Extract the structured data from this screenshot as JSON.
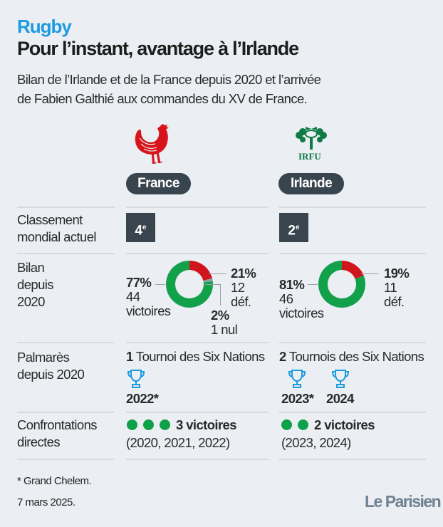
{
  "header": {
    "kicker": "Rugby",
    "title": "Pour l’instant, avantage à l’Irlande",
    "subtitle_line1": "Bilan de l’Irlande et de la France depuis 2020 et l’arrivée",
    "subtitle_line2": "de Fabien Galthié aux commandes du XV de France."
  },
  "teams": {
    "france": {
      "name": "France",
      "logo": "rooster-icon",
      "rank": "4",
      "rank_suffix": "e",
      "record": {
        "wins_pct": "77%",
        "wins_count": "44",
        "wins_label": "victoires",
        "losses_pct": "21%",
        "losses_count": "12",
        "losses_label": "déf.",
        "draws_pct": "2%",
        "draws_label": "1 nul",
        "win": 77,
        "loss": 21,
        "draw": 2
      },
      "titles": {
        "count": "1",
        "label": "Tournoi des Six Nations",
        "years": [
          "2022*"
        ]
      },
      "h2h": {
        "wins": 3,
        "label": "3 victoires",
        "years": "(2020, 2021, 2022)"
      }
    },
    "ireland": {
      "name": "Irlande",
      "logo": "irfu-shamrock-icon",
      "logo_text": "IRFU",
      "rank": "2",
      "rank_suffix": "e",
      "record": {
        "wins_pct": "81%",
        "wins_count": "46",
        "wins_label": "victoires",
        "losses_pct": "19%",
        "losses_count": "11",
        "losses_label": "déf.",
        "win": 81,
        "loss": 19,
        "draw": 0
      },
      "titles": {
        "count": "2",
        "label": "Tournois des Six Nations",
        "years": [
          "2023*",
          "2024"
        ]
      },
      "h2h": {
        "wins": 2,
        "label": "2 victoires",
        "years": "(2023, 2024)"
      }
    }
  },
  "rows": {
    "rank_line1": "Classement",
    "rank_line2": "mondial actuel",
    "record_line1": "Bilan",
    "record_line2": "depuis",
    "record_line3": "2020",
    "titles_line1": "Palmarès",
    "titles_line2": "depuis 2020",
    "h2h_line1": "Confrontations",
    "h2h_line2": "directes"
  },
  "footer": {
    "note": "* Grand Chelem.",
    "date": "7 mars 2025.",
    "brand": "Le Parisien"
  },
  "colors": {
    "win": "#12a14a",
    "loss": "#d0151c",
    "draw": "#8e9aa5",
    "trophy": "#1c9be0"
  }
}
